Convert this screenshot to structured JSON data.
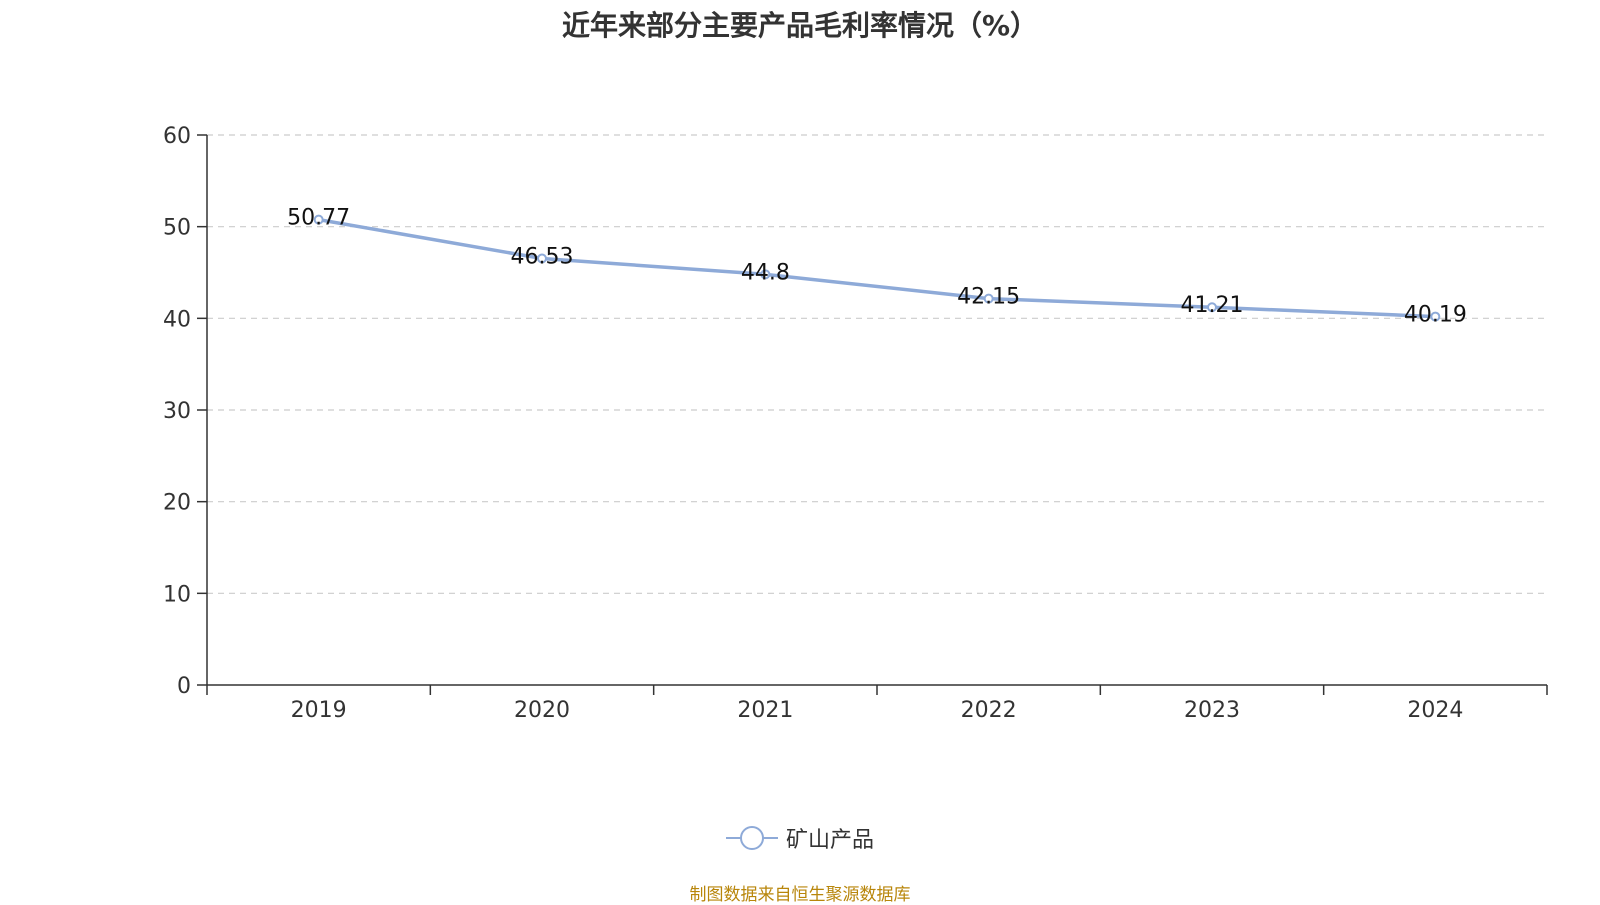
{
  "chart_data": {
    "type": "line",
    "title": "近年来部分主要产品毛利率情况（%）",
    "categories": [
      "2019",
      "2020",
      "2021",
      "2022",
      "2023",
      "2024"
    ],
    "series": [
      {
        "name": "矿山产品",
        "values": [
          50.77,
          46.53,
          44.8,
          42.15,
          41.21,
          40.19
        ],
        "labels": [
          "50.77",
          "46.53",
          "44.8",
          "42.15",
          "41.21",
          "40.19"
        ],
        "color": "#8eaad8"
      }
    ],
    "y_ticks": [
      "0",
      "10",
      "20",
      "30",
      "40",
      "50",
      "60"
    ],
    "ylim": [
      0,
      60
    ],
    "xlabel": "",
    "ylabel": "",
    "grid": true,
    "legend_position": "bottom-center"
  },
  "source_note": "制图数据来自恒生聚源数据库",
  "colors": {
    "line": "#8eaad8",
    "axis": "#333333",
    "grid": "#cccccc",
    "source": "#b8860b"
  }
}
